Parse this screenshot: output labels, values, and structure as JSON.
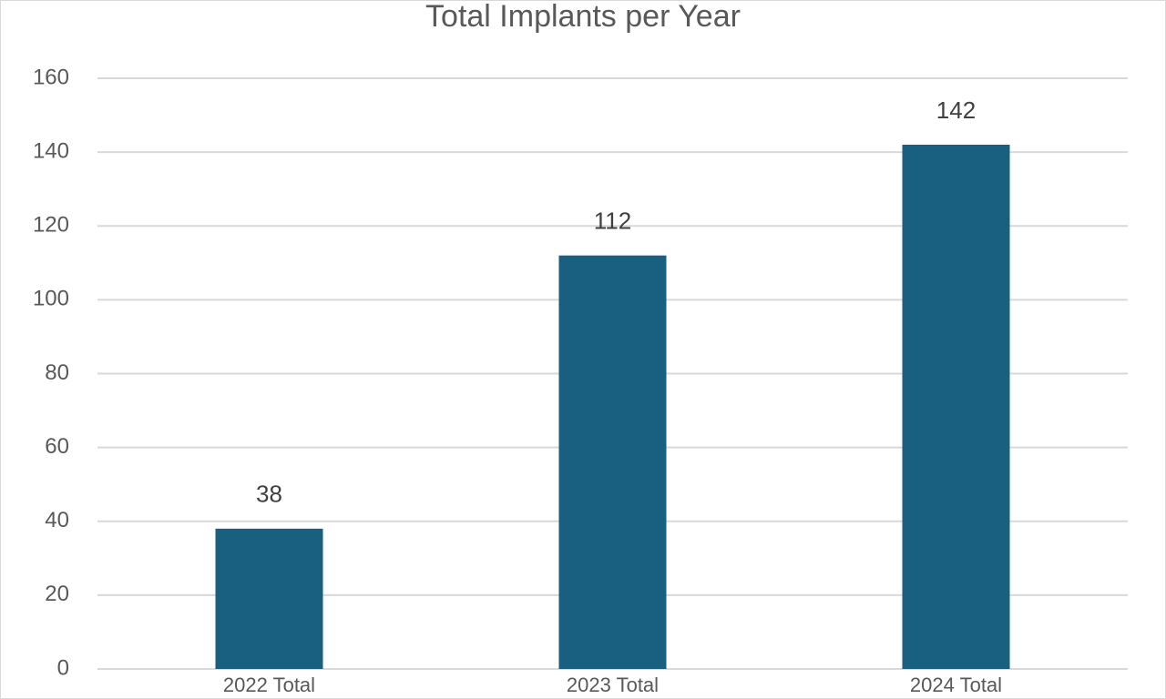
{
  "chart_data": {
    "type": "bar",
    "title": "Total Implants per Year",
    "categories": [
      "2022 Total",
      "2023 Total",
      "2024 Total"
    ],
    "values": [
      38,
      112,
      142
    ],
    "color": "#185f80",
    "ylim": [
      0,
      160
    ],
    "yticks": [
      0,
      20,
      40,
      60,
      80,
      100,
      120,
      140,
      160
    ],
    "grid": true,
    "data_labels": true
  }
}
